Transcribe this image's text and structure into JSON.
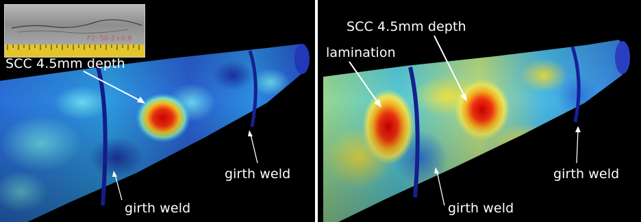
{
  "left_panel": {
    "labels": {
      "scc": "SCC 4.5mm depth",
      "girth_weld_bottom": "girth weld",
      "girth_weld_right": "girth weld"
    },
    "inset_photo": {
      "specimen_marking": "F2: 50-2+0.8"
    }
  },
  "right_panel": {
    "labels": {
      "scc": "SCC 4.5mm depth",
      "lamination": "lamination",
      "girth_weld_bottom": "girth weld",
      "girth_weld_right": "girth weld"
    }
  },
  "colors": {
    "background": "#000000",
    "label_text": "#ffffff",
    "scan_low": "#1f44c6",
    "scan_mid": "#2fb8e8",
    "scan_high": "#e01010"
  }
}
